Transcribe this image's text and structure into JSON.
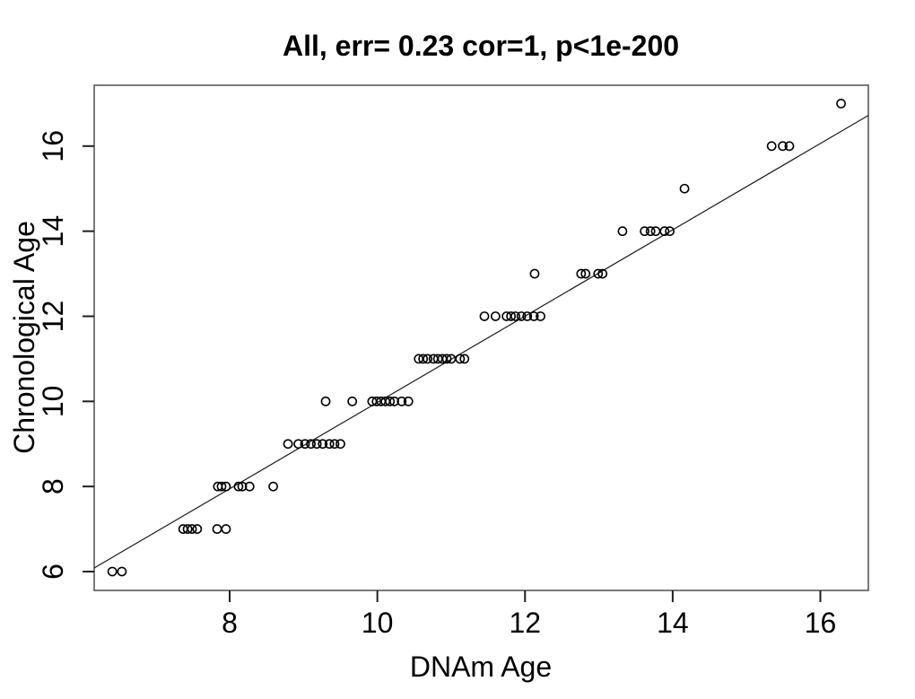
{
  "chart_data": {
    "type": "scatter",
    "title": "All, err= 0.23 cor=1, p<1e-200",
    "xlabel": "DNAm Age",
    "ylabel": "Chronological Age",
    "xlim": [
      6.165,
      16.65
    ],
    "ylim": [
      5.557,
      17.43
    ],
    "xticks": [
      8,
      10,
      12,
      14,
      16
    ],
    "yticks": [
      6,
      8,
      10,
      12,
      14,
      16
    ],
    "grid": false,
    "legend": "none",
    "marker": "open-circle",
    "colors": {
      "points": "#000000",
      "regression_line": "#1a1a1a",
      "box": "#595959",
      "ticks": "#1f1f1f",
      "background": "#ffffff"
    },
    "regression_line": {
      "x1": 6.165,
      "y1": 6.085,
      "x2": 16.65,
      "y2": 16.72,
      "slope": 1.014,
      "intercept": -0.17
    },
    "points": [
      [
        6.41,
        6
      ],
      [
        6.54,
        6
      ],
      [
        7.37,
        7
      ],
      [
        7.43,
        7
      ],
      [
        7.49,
        7
      ],
      [
        7.56,
        7
      ],
      [
        7.83,
        7
      ],
      [
        7.95,
        7
      ],
      [
        7.84,
        8
      ],
      [
        7.89,
        8
      ],
      [
        7.95,
        8
      ],
      [
        8.12,
        8
      ],
      [
        8.17,
        8
      ],
      [
        8.27,
        8
      ],
      [
        8.59,
        8
      ],
      [
        8.79,
        9
      ],
      [
        8.93,
        9
      ],
      [
        9.02,
        9
      ],
      [
        9.1,
        9
      ],
      [
        9.18,
        9
      ],
      [
        9.26,
        9
      ],
      [
        9.35,
        9
      ],
      [
        9.42,
        9
      ],
      [
        9.5,
        9
      ],
      [
        9.3,
        10
      ],
      [
        9.66,
        10
      ],
      [
        9.93,
        10
      ],
      [
        9.99,
        10
      ],
      [
        10.05,
        10
      ],
      [
        10.11,
        10
      ],
      [
        10.17,
        10
      ],
      [
        10.23,
        10
      ],
      [
        10.33,
        10
      ],
      [
        10.42,
        10
      ],
      [
        10.56,
        11
      ],
      [
        10.62,
        11
      ],
      [
        10.68,
        11
      ],
      [
        10.76,
        11
      ],
      [
        10.82,
        11
      ],
      [
        10.88,
        11
      ],
      [
        10.94,
        11
      ],
      [
        11.0,
        11
      ],
      [
        11.12,
        11
      ],
      [
        11.18,
        11
      ],
      [
        11.45,
        12
      ],
      [
        11.6,
        12
      ],
      [
        11.75,
        12
      ],
      [
        11.81,
        12
      ],
      [
        11.87,
        12
      ],
      [
        11.95,
        12
      ],
      [
        12.03,
        12
      ],
      [
        12.12,
        12
      ],
      [
        12.21,
        12
      ],
      [
        12.13,
        13
      ],
      [
        12.76,
        13
      ],
      [
        12.82,
        13
      ],
      [
        12.99,
        13
      ],
      [
        13.05,
        13
      ],
      [
        13.32,
        14
      ],
      [
        13.62,
        14
      ],
      [
        13.7,
        14
      ],
      [
        13.77,
        14
      ],
      [
        13.89,
        14
      ],
      [
        13.96,
        14
      ],
      [
        14.16,
        15
      ],
      [
        15.34,
        16
      ],
      [
        15.49,
        16
      ],
      [
        15.58,
        16
      ],
      [
        16.28,
        17
      ]
    ]
  }
}
